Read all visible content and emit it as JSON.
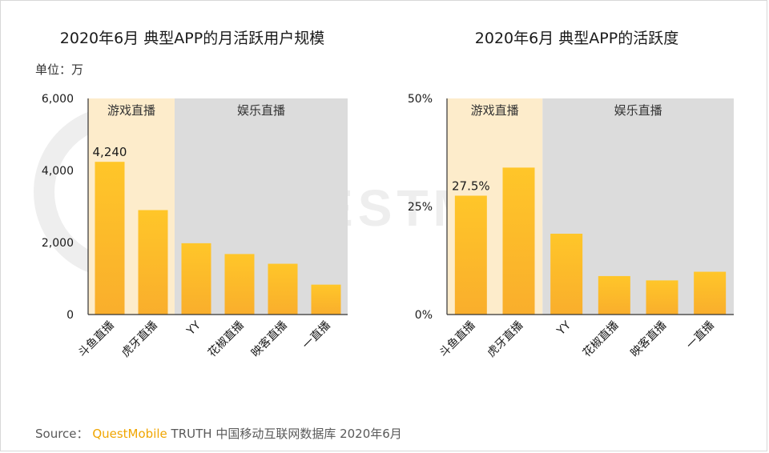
{
  "chart_data": [
    {
      "type": "bar",
      "title": "2020年6月 典型APP的月活跃用户规模",
      "unit_label": "单位：万",
      "categories": [
        "斗鱼直播",
        "虎牙直播",
        "YY",
        "花椒直播",
        "映客直播",
        "一直播"
      ],
      "values": [
        4240,
        2900,
        1980,
        1680,
        1410,
        830
      ],
      "data_labels": [
        "4,240",
        "",
        "",
        "",
        "",
        ""
      ],
      "ylim": [
        0,
        6000
      ],
      "y_ticks": [
        "0",
        "2,000",
        "4,000",
        "6,000"
      ],
      "groups": [
        {
          "label": "游戏直播",
          "from": 0,
          "to": 1,
          "color": "#fdeccb"
        },
        {
          "label": "娱乐直播",
          "from": 2,
          "to": 5,
          "color": "#dcdcdc"
        }
      ]
    },
    {
      "type": "bar",
      "title": "2020年6月 典型APP的活跃度",
      "categories": [
        "斗鱼直播",
        "虎牙直播",
        "YY",
        "花椒直播",
        "映客直播",
        "一直播"
      ],
      "values": [
        27.5,
        34.0,
        18.7,
        8.9,
        7.9,
        9.9
      ],
      "data_labels": [
        "27.5%",
        "",
        "",
        "",
        "",
        ""
      ],
      "ylim": [
        0,
        50
      ],
      "y_ticks": [
        "0%",
        "25%",
        "50%"
      ],
      "groups": [
        {
          "label": "游戏直播",
          "from": 0,
          "to": 1,
          "color": "#fdeccb"
        },
        {
          "label": "娱乐直播",
          "from": 2,
          "to": 5,
          "color": "#dcdcdc"
        }
      ]
    }
  ],
  "watermark": "QUESTMOBILE",
  "footer": {
    "source_label": "Source：",
    "brand": "QuestMobile",
    "text": "TRUTH 中国移动互联网数据库 2020年6月"
  },
  "colors": {
    "bar_top": "#ffc629",
    "bar_bottom": "#f9ae2c",
    "axis": "#333333",
    "watermark": "#eeeeee"
  }
}
